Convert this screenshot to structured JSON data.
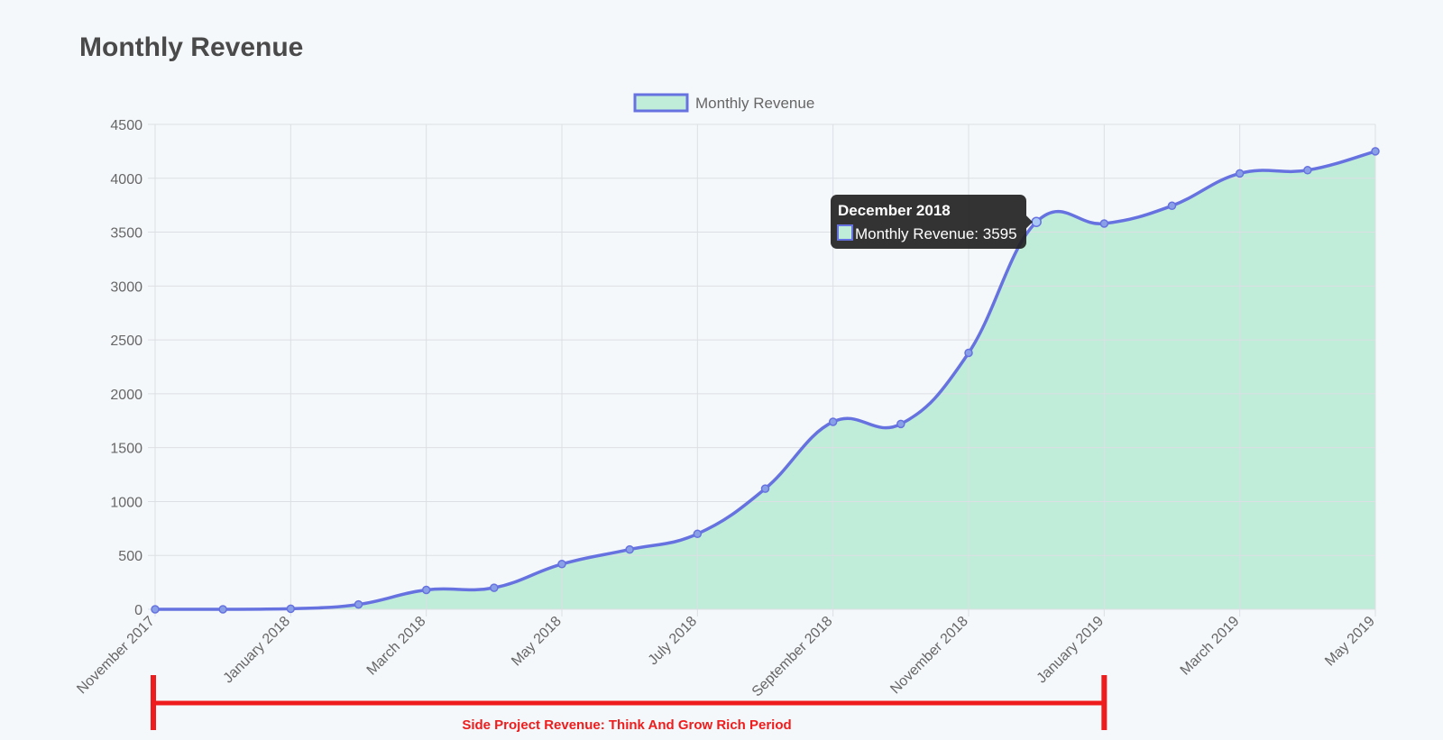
{
  "page": {
    "title": "Monthly Revenue"
  },
  "chart_data": {
    "type": "area",
    "x": [
      "November 2017",
      "December 2017",
      "January 2018",
      "February 2018",
      "March 2018",
      "April 2018",
      "May 2018",
      "June 2018",
      "July 2018",
      "August 2018",
      "September 2018",
      "October 2018",
      "November 2018",
      "December 2018",
      "January 2019",
      "February 2019",
      "March 2019",
      "April 2019",
      "May 2019"
    ],
    "x_tick_labels": [
      "November 2017",
      "January 2018",
      "March 2018",
      "May 2018",
      "July 2018",
      "September 2018",
      "November 2018",
      "January 2019",
      "March 2019",
      "May 2019"
    ],
    "series": [
      {
        "name": "Monthly Revenue",
        "values": [
          0,
          0,
          5,
          45,
          180,
          200,
          420,
          555,
          700,
          1120,
          1740,
          1720,
          2380,
          3595,
          3580,
          3745,
          4045,
          4075,
          4250
        ]
      }
    ],
    "ylim": [
      0,
      4500
    ],
    "y_ticks": [
      0,
      500,
      1000,
      1500,
      2000,
      2500,
      3000,
      3500,
      4000,
      4500
    ],
    "grid": true,
    "legend": "top-center",
    "colors": {
      "line": "#6672e0",
      "fill": "#c0ecda",
      "point": "#8aa0e6",
      "grid": "#dcdfe3",
      "annotation": "#ee1c1c"
    },
    "tooltip": {
      "title": "December 2018",
      "label": "Monthly Revenue: 3595",
      "index": 13
    },
    "annotation": {
      "text": "Side Project Revenue: Think And Grow Rich Period",
      "from": "November 2017",
      "to": "January 2019"
    }
  }
}
